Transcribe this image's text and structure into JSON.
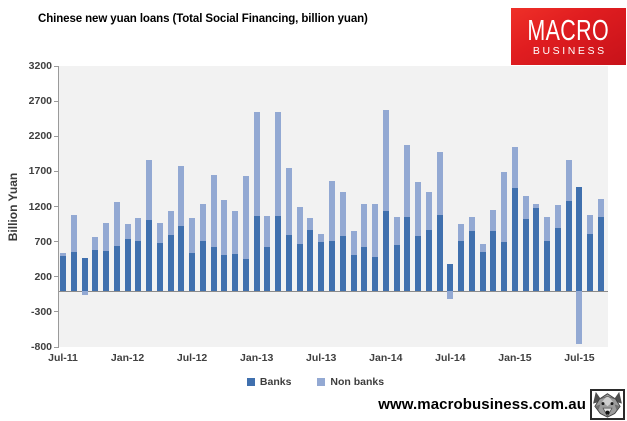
{
  "header": {
    "title": "Chinese new yuan loans (Total Social Financing, billion yuan)",
    "logo": {
      "line1": "MACRO",
      "line2": "BUSINESS",
      "bg_color": "#d8161f",
      "text_color": "#ffffff"
    }
  },
  "chart_data": {
    "type": "bar",
    "stacked": true,
    "title": "Chinese new yuan loans (Total Social Financing, billion yuan)",
    "xlabel": "",
    "ylabel": "Billion Yuan",
    "ylim": [
      -800,
      3200
    ],
    "yticks": [
      3200,
      2700,
      2200,
      1700,
      1200,
      700,
      200,
      -300,
      -800
    ],
    "xtick_labels": [
      "Jul-11",
      "Jan-12",
      "Jul-12",
      "Jan-13",
      "Jul-13",
      "Jan-14",
      "Jul-14",
      "Jan-15",
      "Jul-15"
    ],
    "grid": false,
    "legend_position": "bottom",
    "plot_bg_color": "#f2f2f2",
    "categories": [
      "Jul-11",
      "Aug-11",
      "Sep-11",
      "Oct-11",
      "Nov-11",
      "Dec-11",
      "Jan-12",
      "Feb-12",
      "Mar-12",
      "Apr-12",
      "May-12",
      "Jun-12",
      "Jul-12",
      "Aug-12",
      "Sep-12",
      "Oct-12",
      "Nov-12",
      "Dec-12",
      "Jan-13",
      "Feb-13",
      "Mar-13",
      "Apr-13",
      "May-13",
      "Jun-13",
      "Jul-13",
      "Aug-13",
      "Sep-13",
      "Oct-13",
      "Nov-13",
      "Dec-13",
      "Jan-14",
      "Feb-14",
      "Mar-14",
      "Apr-14",
      "May-14",
      "Jun-14",
      "Jul-14",
      "Aug-14",
      "Sep-14",
      "Oct-14",
      "Nov-14",
      "Dec-14",
      "Jan-15",
      "Feb-15",
      "Mar-15",
      "Apr-15",
      "May-15",
      "Jun-15",
      "Jul-15",
      "Aug-15",
      "Sep-15"
    ],
    "series": [
      {
        "name": "Banks",
        "color": "#4070ae",
        "values": [
          493,
          549,
          470,
          587,
          562,
          641,
          738,
          711,
          1011,
          682,
          793,
          920,
          540,
          704,
          623,
          505,
          523,
          454,
          1070,
          620,
          1060,
          793,
          667,
          861,
          700,
          711,
          787,
          506,
          625,
          483,
          1140,
          645,
          1050,
          775,
          871,
          1080,
          385,
          703,
          857,
          548,
          853,
          697,
          1470,
          1020,
          1180,
          708,
          901,
          1279,
          1480,
          810,
          1050
        ]
      },
      {
        "name": "Non banks",
        "color": "#93a9d3",
        "values": [
          45,
          530,
          -65,
          185,
          399,
          621,
          218,
          325,
          851,
          277,
          347,
          863,
          501,
          535,
          1027,
          785,
          617,
          1176,
          1470,
          450,
          1480,
          957,
          523,
          179,
          109,
          859,
          613,
          350,
          605,
          747,
          1440,
          400,
          1020,
          775,
          529,
          890,
          -112,
          254,
          193,
          115,
          293,
          993,
          580,
          330,
          60,
          342,
          319,
          581,
          -755,
          270,
          250
        ]
      }
    ]
  },
  "footer": {
    "website": "www.macrobusiness.com.au",
    "logo_icon": "wolf-head"
  }
}
